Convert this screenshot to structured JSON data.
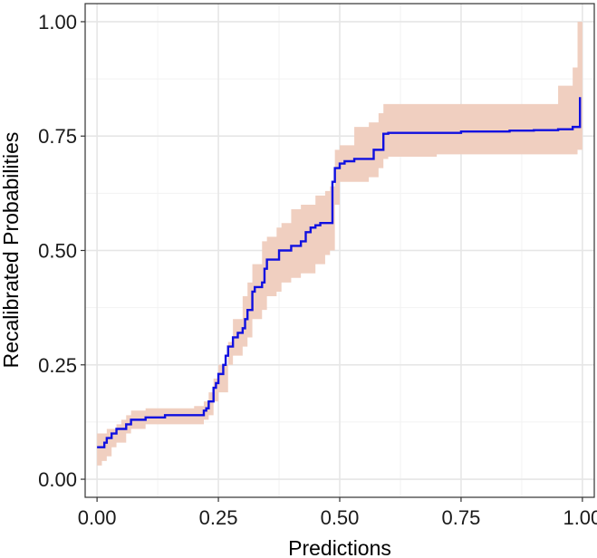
{
  "chart_data": {
    "type": "line",
    "title": "",
    "xlabel": "Predictions",
    "ylabel": "Recalibrated Probabilities",
    "xlim": [
      -0.0245,
      1.0245
    ],
    "ylim": [
      -0.0395,
      1.0395
    ],
    "x_ticks": [
      {
        "value": 0.0,
        "label": "0.00"
      },
      {
        "value": 0.25,
        "label": "0.25"
      },
      {
        "value": 0.5,
        "label": "0.50"
      },
      {
        "value": 0.75,
        "label": "0.75"
      },
      {
        "value": 1.0,
        "label": "1.00"
      }
    ],
    "y_ticks": [
      {
        "value": 0.0,
        "label": "0.00"
      },
      {
        "value": 0.25,
        "label": "0.25"
      },
      {
        "value": 0.5,
        "label": "0.50"
      },
      {
        "value": 0.75,
        "label": "0.75"
      },
      {
        "value": 1.0,
        "label": "1.00"
      }
    ],
    "grid": true,
    "legend": "none",
    "colors": {
      "line": "#1010e0",
      "band": "#f0cfc0",
      "grid_major": "#e6e6e6",
      "grid_minor": "#f2f2f2",
      "panel_border": "#333333"
    },
    "series": [
      {
        "kind": "line",
        "x": [
          0.0,
          0.01,
          0.015,
          0.02,
          0.025,
          0.03,
          0.04,
          0.05,
          0.06,
          0.07,
          0.08,
          0.09,
          0.1,
          0.12,
          0.14,
          0.16,
          0.18,
          0.2,
          0.22,
          0.225,
          0.23,
          0.235,
          0.24,
          0.245,
          0.25,
          0.26,
          0.265,
          0.27,
          0.28,
          0.29,
          0.3,
          0.305,
          0.31,
          0.32,
          0.325,
          0.33,
          0.34,
          0.345,
          0.35,
          0.36,
          0.37,
          0.375,
          0.38,
          0.39,
          0.4,
          0.41,
          0.42,
          0.43,
          0.44,
          0.45,
          0.46,
          0.47,
          0.48,
          0.485,
          0.49,
          0.5,
          0.51,
          0.52,
          0.53,
          0.54,
          0.55,
          0.56,
          0.57,
          0.58,
          0.59,
          0.6,
          0.65,
          0.7,
          0.75,
          0.8,
          0.85,
          0.9,
          0.95,
          0.98,
          0.99,
          0.995
        ],
        "y": [
          0.07,
          0.07,
          0.08,
          0.09,
          0.09,
          0.1,
          0.11,
          0.11,
          0.12,
          0.13,
          0.13,
          0.13,
          0.135,
          0.135,
          0.14,
          0.14,
          0.14,
          0.14,
          0.15,
          0.155,
          0.17,
          0.17,
          0.2,
          0.21,
          0.23,
          0.25,
          0.27,
          0.29,
          0.31,
          0.32,
          0.33,
          0.35,
          0.37,
          0.41,
          0.42,
          0.42,
          0.43,
          0.46,
          0.48,
          0.48,
          0.48,
          0.5,
          0.5,
          0.5,
          0.51,
          0.51,
          0.52,
          0.54,
          0.55,
          0.555,
          0.56,
          0.56,
          0.56,
          0.65,
          0.68,
          0.69,
          0.695,
          0.695,
          0.7,
          0.7,
          0.7,
          0.7,
          0.72,
          0.72,
          0.755,
          0.757,
          0.757,
          0.757,
          0.76,
          0.76,
          0.762,
          0.763,
          0.765,
          0.77,
          0.77,
          0.835
        ]
      },
      {
        "kind": "band",
        "x": [
          0.0,
          0.01,
          0.02,
          0.03,
          0.04,
          0.05,
          0.06,
          0.07,
          0.08,
          0.1,
          0.14,
          0.2,
          0.22,
          0.23,
          0.24,
          0.25,
          0.27,
          0.28,
          0.3,
          0.31,
          0.32,
          0.34,
          0.35,
          0.37,
          0.38,
          0.4,
          0.42,
          0.45,
          0.47,
          0.48,
          0.49,
          0.5,
          0.53,
          0.56,
          0.58,
          0.59,
          0.6,
          0.7,
          0.8,
          0.9,
          0.95,
          0.98,
          0.99,
          1.0
        ],
        "lower": [
          0.03,
          0.04,
          0.05,
          0.07,
          0.08,
          0.08,
          0.1,
          0.11,
          0.11,
          0.12,
          0.12,
          0.12,
          0.13,
          0.14,
          0.17,
          0.19,
          0.25,
          0.27,
          0.29,
          0.31,
          0.35,
          0.37,
          0.4,
          0.41,
          0.43,
          0.44,
          0.45,
          0.47,
          0.49,
          0.5,
          0.6,
          0.65,
          0.65,
          0.66,
          0.68,
          0.7,
          0.705,
          0.71,
          0.71,
          0.71,
          0.71,
          0.71,
          0.72,
          0.72
        ],
        "upper": [
          0.1,
          0.1,
          0.11,
          0.11,
          0.12,
          0.13,
          0.14,
          0.15,
          0.15,
          0.155,
          0.155,
          0.16,
          0.17,
          0.19,
          0.22,
          0.25,
          0.3,
          0.35,
          0.4,
          0.43,
          0.47,
          0.52,
          0.53,
          0.55,
          0.56,
          0.59,
          0.6,
          0.62,
          0.63,
          0.64,
          0.72,
          0.73,
          0.77,
          0.78,
          0.8,
          0.82,
          0.82,
          0.82,
          0.82,
          0.82,
          0.86,
          0.9,
          1.0,
          1.0
        ]
      }
    ]
  }
}
